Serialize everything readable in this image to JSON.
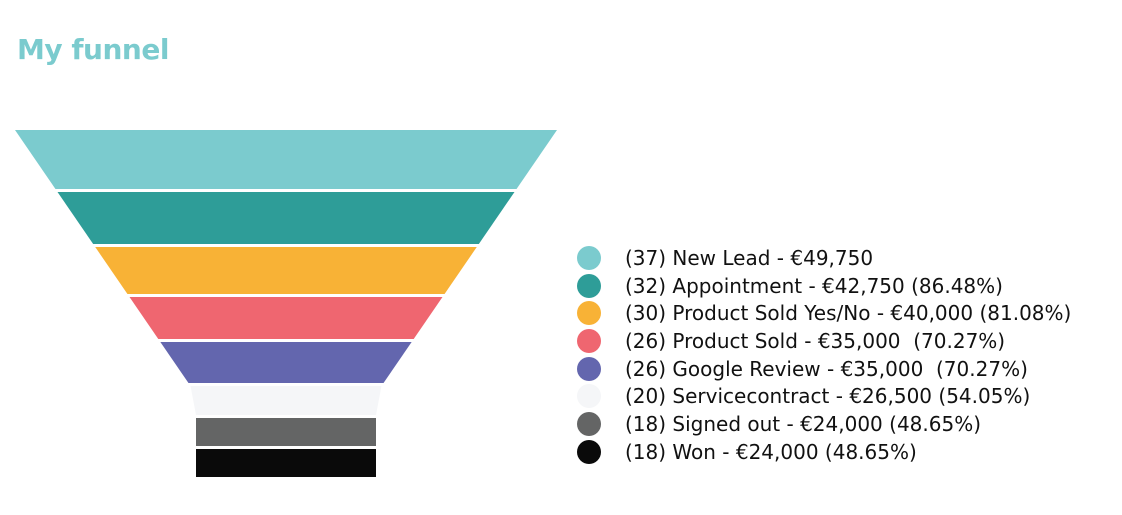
{
  "page": {
    "title": "My funnel",
    "title_color": "#7BCBCE"
  },
  "chart_data": {
    "type": "funnel",
    "title": "My funnel",
    "stages": [
      {
        "name": "New Lead",
        "count": 37,
        "value": 49750,
        "percent": null,
        "color": "#7BCBCE",
        "label": "(37) New Lead - €49,750"
      },
      {
        "name": "Appointment",
        "count": 32,
        "value": 42750,
        "percent": 86.48,
        "color": "#2E9D98",
        "label": "(32) Appointment - €42,750 (86.48%)"
      },
      {
        "name": "Product Sold Yes/No",
        "count": 30,
        "value": 40000,
        "percent": 81.08,
        "color": "#F8B236",
        "label": "(30) Product Sold Yes/No - €40,000 (81.08%)"
      },
      {
        "name": "Product Sold",
        "count": 26,
        "value": 35000,
        "percent": 70.27,
        "color": "#EF6670",
        "label": "(26) Product Sold - €35,000  (70.27%)"
      },
      {
        "name": "Google Review",
        "count": 26,
        "value": 35000,
        "percent": 70.27,
        "color": "#6366AE",
        "label": "(26) Google Review - €35,000  (70.27%)"
      },
      {
        "name": "Servicecontract",
        "count": 20,
        "value": 26500,
        "percent": 54.05,
        "color": "#F5F6F8",
        "label": "(20) Servicecontract - €26,500 (54.05%)"
      },
      {
        "name": "Signed out",
        "count": 18,
        "value": 24000,
        "percent": 48.65,
        "color": "#646565",
        "label": "(18) Signed out - €24,000 (48.65%)"
      },
      {
        "name": "Won",
        "count": 18,
        "value": 24000,
        "percent": 48.65,
        "color": "#0A0A0A",
        "label": "(18) Won - €24,000 (48.65%)"
      }
    ],
    "legend_position": "right"
  }
}
